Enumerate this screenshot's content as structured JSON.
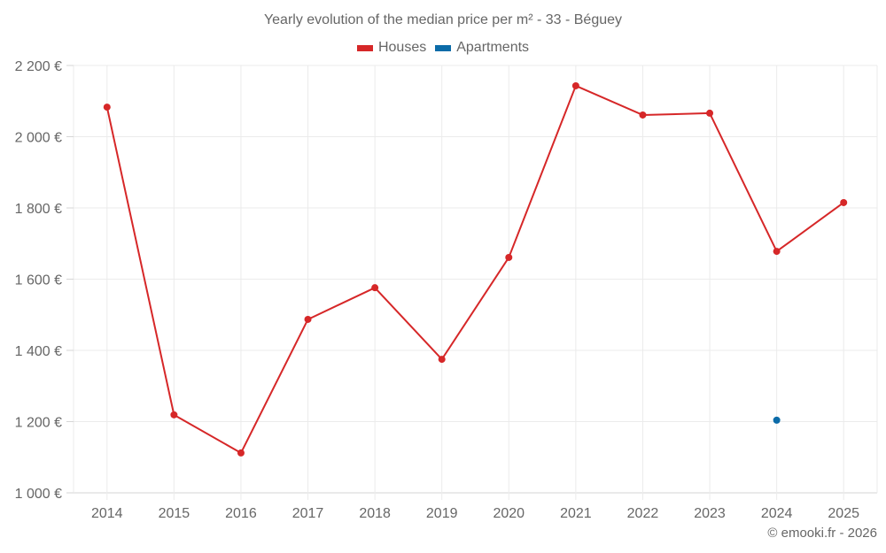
{
  "chart_data": {
    "type": "line",
    "title": "Yearly evolution of the median price per m² - 33 - Béguey",
    "xlabel": "",
    "ylabel": "",
    "categories": [
      "2014",
      "2015",
      "2016",
      "2017",
      "2018",
      "2019",
      "2020",
      "2021",
      "2022",
      "2023",
      "2024",
      "2025"
    ],
    "series": [
      {
        "name": "Houses",
        "color": "#d62728",
        "values": [
          2083,
          1219,
          1112,
          1487,
          1576,
          1375,
          1661,
          2143,
          2061,
          2066,
          1678,
          1815
        ]
      },
      {
        "name": "Apartments",
        "color": "#0b6ba8",
        "values": [
          null,
          null,
          null,
          null,
          null,
          null,
          null,
          null,
          null,
          null,
          1204,
          null
        ]
      }
    ],
    "ylim": [
      1000,
      2200
    ],
    "yticks": [
      1000,
      1200,
      1400,
      1600,
      1800,
      2000,
      2200
    ],
    "ytick_labels": [
      "1 000 €",
      "1 200 €",
      "1 400 €",
      "1 600 €",
      "1 800 €",
      "2 000 €",
      "2 200 €"
    ],
    "grid": true,
    "legend_position": "top"
  },
  "header": {
    "title": "Yearly evolution of the median price per m² - 33 - Béguey"
  },
  "legend": {
    "items": [
      {
        "label": "Houses",
        "color": "#d62728"
      },
      {
        "label": "Apartments",
        "color": "#0b6ba8"
      }
    ]
  },
  "footer": {
    "credit": "© emooki.fr - 2026"
  }
}
